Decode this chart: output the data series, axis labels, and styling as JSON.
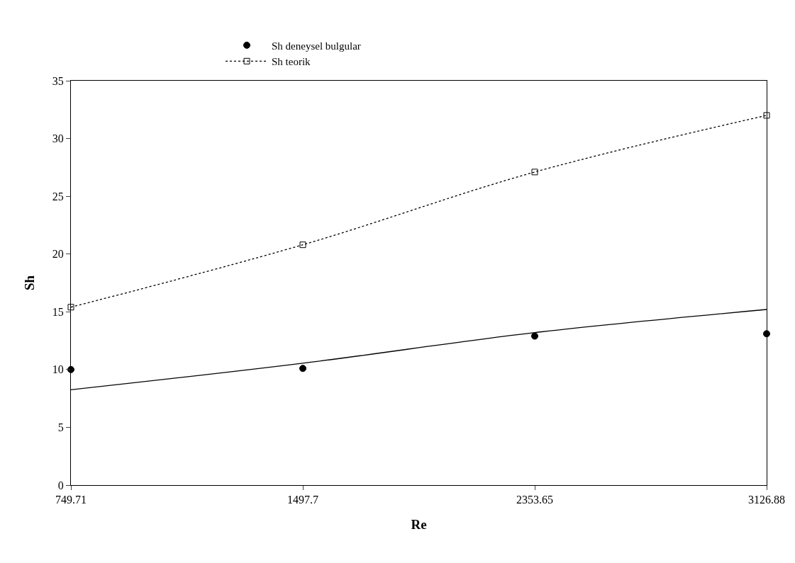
{
  "chart_data": {
    "type": "line",
    "xlabel": "Re",
    "ylabel": "Sh",
    "categories": [
      "749.71",
      "1497.7",
      "2353.65",
      "3126.88"
    ],
    "series": [
      {
        "name": "Sh deneysel bulgular",
        "type": "scatter",
        "marker": "circle",
        "color": "#000000",
        "values": [
          10.0,
          10.1,
          12.9,
          13.1
        ]
      },
      {
        "name": "Sh teorik",
        "marker": "square",
        "line_style": "dotted",
        "color": "#000000",
        "values": [
          15.4,
          20.8,
          27.1,
          32.0
        ]
      },
      {
        "marker": "none",
        "line_style": "solid",
        "color": "#000000",
        "values": [
          8.25,
          10.55,
          13.2,
          15.2
        ]
      }
    ],
    "ylim": [
      0,
      35
    ],
    "yticks": [
      0,
      5,
      10,
      15,
      20,
      25,
      30,
      35
    ],
    "grid": false,
    "legend": "top"
  }
}
